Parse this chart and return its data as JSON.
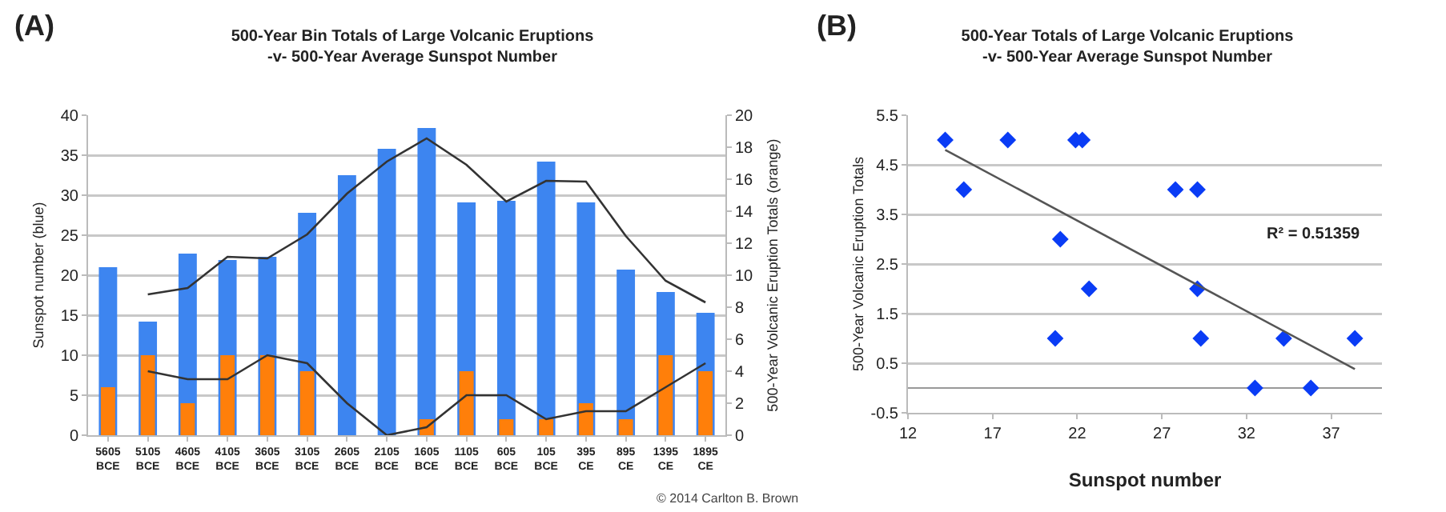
{
  "chart_data": [
    {
      "type": "bar",
      "title": "500-Year Bin Totals of Large Volcanic Eruptions\n-v- 500-Year Average Sunspot Number",
      "ylabel": "Sunspot number (blue)",
      "y2label": "500-Year Volcanic Eruption Totals (orange)",
      "annotations": [
        "(A)",
        "© 2014 Carlton B. Brown"
      ],
      "categories": [
        "5605 BCE",
        "5105 BCE",
        "4605 BCE",
        "4105 BCE",
        "3605 BCE",
        "3105 BCE",
        "2605 BCE",
        "2105 BCE",
        "1605 BCE",
        "1105 BCE",
        "605 BCE",
        "105 BCE",
        "395 CE",
        "895 CE",
        "1395 CE",
        "1895 CE"
      ],
      "series": [
        {
          "color": "#3d85f0",
          "values": [
            21,
            14.2,
            22.7,
            21.9,
            22.3,
            27.8,
            32.5,
            35.8,
            38.4,
            29.1,
            29.3,
            34.2,
            29.1,
            20.7,
            17.9,
            15.3
          ]
        },
        {
          "axis": "y2",
          "color": "#ff7f0a",
          "values": [
            3,
            5,
            2,
            5,
            5,
            4,
            0,
            0,
            1,
            4,
            1,
            1,
            2,
            1,
            5,
            4
          ]
        },
        {
          "type": "line",
          "color": "#333333",
          "values": [
            null,
            17.6,
            18.4,
            22.3,
            22.1,
            25.1,
            30.2,
            34.2,
            37.1,
            33.8,
            29.2,
            31.8,
            31.7,
            24.9,
            19.3,
            16.6
          ]
        },
        {
          "type": "line",
          "axis": "y2",
          "color": "#333333",
          "values": [
            null,
            4,
            3.5,
            3.5,
            5,
            4.5,
            2,
            0,
            0.5,
            2.5,
            2.5,
            1,
            1.5,
            1.5,
            3,
            4.5
          ]
        }
      ],
      "ylim": [
        0,
        40
      ],
      "yticks": [
        0,
        5,
        10,
        15,
        20,
        25,
        30,
        35,
        40
      ],
      "y2lim": [
        0,
        20
      ],
      "y2ticks": [
        0,
        2,
        4,
        6,
        8,
        10,
        12,
        14,
        16,
        18,
        20
      ],
      "grid": "y"
    },
    {
      "type": "scatter",
      "title": "500-Year Totals of Large Volcanic Eruptions\n-v- 500-Year Average Sunspot Number",
      "xlabel": "Sunspot number",
      "ylabel": "500-Year Volcanic Eruption Totals",
      "annotations": [
        "(B)",
        "R² = 0.51359"
      ],
      "series": [
        {
          "color": "#0a3cf5",
          "marker": "diamond",
          "x": [
            21,
            14.2,
            22.7,
            21.9,
            22.3,
            27.8,
            32.5,
            35.8,
            38.4,
            29.1,
            29.3,
            34.2,
            29.1,
            20.7,
            17.9,
            15.3
          ],
          "values": [
            3,
            5,
            2,
            5,
            5,
            4,
            0,
            0,
            1,
            4,
            1,
            1,
            2,
            1,
            5,
            4
          ]
        },
        {
          "type": "line",
          "color": "#555555",
          "x": [
            14.2,
            38.4
          ],
          "values": [
            4.8,
            0.38
          ]
        }
      ],
      "xlim": [
        12,
        40
      ],
      "xticks": [
        12,
        17,
        22,
        27,
        32,
        37
      ],
      "ylim": [
        -0.5,
        5.5
      ],
      "yticks": [
        -0.5,
        0.5,
        1.5,
        2.5,
        3.5,
        4.5,
        5.5
      ],
      "grid": "y"
    }
  ]
}
